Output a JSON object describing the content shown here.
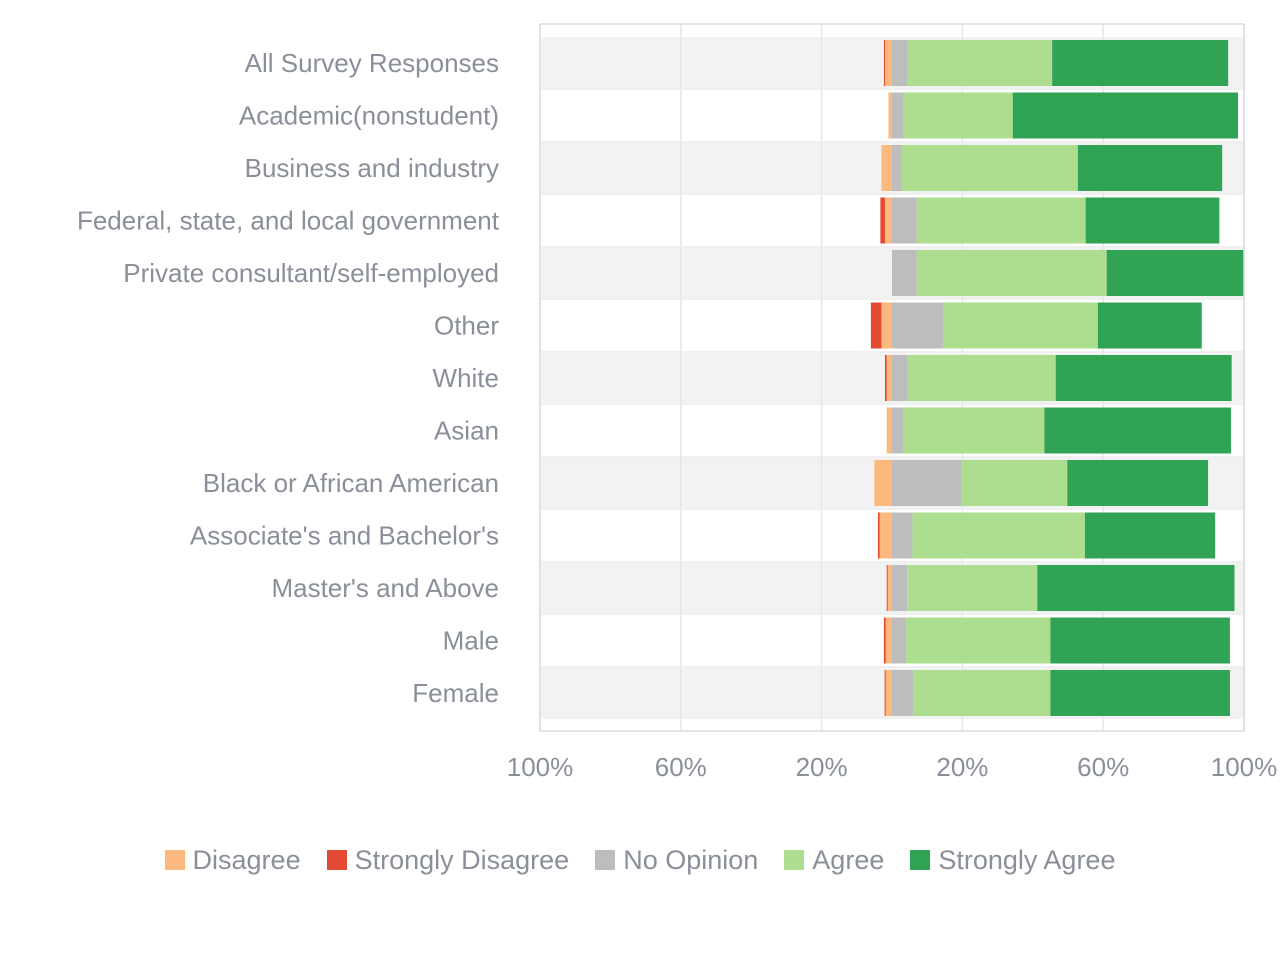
{
  "chart_data": {
    "type": "bar",
    "orientation": "horizontal",
    "stacking": "diverging",
    "categories": [
      "All Survey Responses",
      "Academic(nonstudent)",
      "Business and industry",
      "Federal, state, and local government",
      "Private consultant/self-employed",
      "Other",
      "White",
      "Asian",
      "Black or African American",
      "Associate's and Bachelor's",
      "Master's and Above",
      "Male",
      "Female"
    ],
    "series": [
      {
        "name": "Disagree",
        "color": "#fdb97d",
        "side": "negative",
        "values": [
          2,
          1,
          3,
          2,
          0,
          3,
          1.5,
          1.5,
          5,
          3.5,
          1.2,
          1.8,
          1.8
        ]
      },
      {
        "name": "Strongly Disagree",
        "color": "#e34a33",
        "side": "negative",
        "values": [
          0.3,
          0,
          0,
          1.3,
          0,
          3,
          0.5,
          0,
          0,
          0.5,
          0.3,
          0.5,
          0.3
        ]
      },
      {
        "name": "No Opinion",
        "color": "#bdbdbd",
        "side": "neutral",
        "values": [
          4.5,
          3.3,
          2.8,
          7,
          7,
          14.5,
          4.5,
          3.3,
          19.8,
          5.8,
          4.3,
          4,
          6
        ]
      },
      {
        "name": "Agree",
        "color": "#addd8e",
        "side": "positive",
        "values": [
          41,
          31,
          50,
          48,
          54,
          44,
          42,
          40,
          30,
          49,
          37,
          41,
          39
        ]
      },
      {
        "name": "Strongly Agree",
        "color": "#31a354",
        "side": "positive",
        "values": [
          50,
          64,
          41,
          38,
          39,
          29.5,
          50,
          53,
          40,
          37,
          56,
          51,
          51
        ]
      }
    ],
    "xlim": [
      -100,
      100
    ],
    "x_ticks": [
      "100%",
      "60%",
      "20%",
      "20%",
      "60%",
      "100%"
    ],
    "grid": true,
    "legend_position": "bottom"
  }
}
